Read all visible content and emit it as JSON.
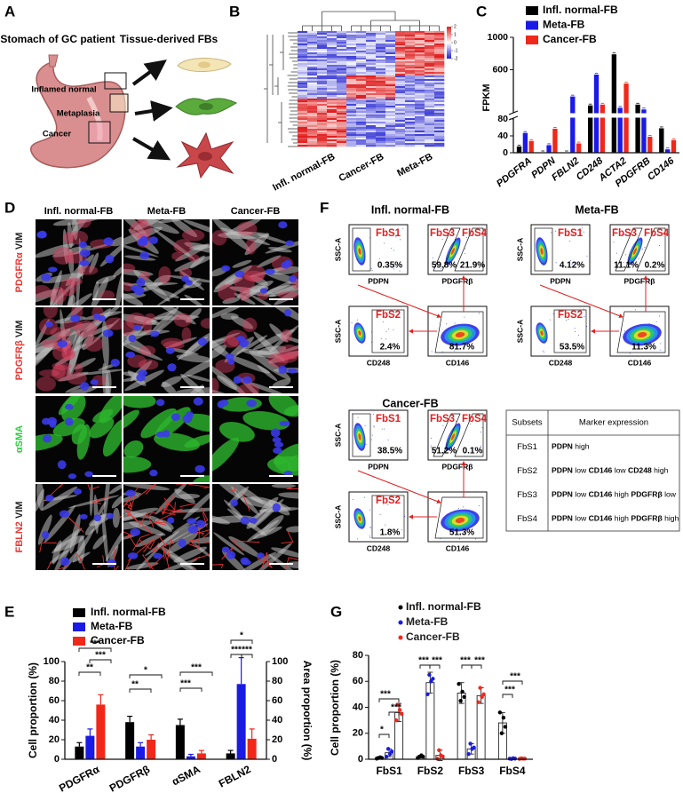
{
  "panel_labels": [
    "A",
    "B",
    "C",
    "D",
    "E",
    "F",
    "G"
  ],
  "panel_a": {
    "title": "Stomach of GC patient",
    "subtitle": "Tissue-derived FBs",
    "regions": [
      "Inflamed normal",
      "Metaplasia",
      "Cancer"
    ]
  },
  "panel_b": {
    "columns": [
      "Infl. normal-FB",
      "Cancer-FB",
      "Meta-FB"
    ],
    "colorbar_ticks": [
      2,
      1,
      0,
      -1,
      -2
    ]
  },
  "panel_d": {
    "columns": [
      "Infl. normal-FB",
      "Meta-FB",
      "Cancer-FB"
    ],
    "rows": [
      {
        "labels": [
          "PDGFRα",
          " VIM"
        ],
        "colors": [
          "#e53935",
          "#222222"
        ]
      },
      {
        "labels": [
          "PDGFRβ",
          " VIM"
        ],
        "colors": [
          "#e53935",
          "#222222"
        ]
      },
      {
        "labels": [
          "αSMA"
        ],
        "colors": [
          "#2ecc40"
        ]
      },
      {
        "labels": [
          "FBLN2",
          " VIM"
        ],
        "colors": [
          "#e53935",
          "#222222"
        ]
      }
    ]
  },
  "panel_f": {
    "groups": [
      {
        "title": "Infl. normal-FB",
        "plots": [
          {
            "x_label": "PDPN",
            "y_label": "SSC-A",
            "gates": [
              "FbS1"
            ],
            "percents": [
              "0.35%"
            ]
          },
          {
            "x_label": "PDGFRβ",
            "gates": [
              "FbS3",
              "FbS4"
            ],
            "percents": [
              "59.8%",
              "21.9%"
            ]
          },
          {
            "x_label": "CD248",
            "y_label": "SSC-A",
            "gates": [
              "FbS2"
            ],
            "percents": [
              "2.4%"
            ]
          },
          {
            "x_label": "CD146",
            "gates": [],
            "percents": [
              "81.7%"
            ]
          }
        ]
      },
      {
        "title": "Meta-FB",
        "plots": [
          {
            "x_label": "PDPN",
            "y_label": "SSC-A",
            "gates": [
              "FbS1"
            ],
            "percents": [
              "4.12%"
            ]
          },
          {
            "x_label": "PDGFRβ",
            "gates": [
              "FbS3",
              "FbS4"
            ],
            "percents": [
              "11.1%",
              "0.2%"
            ]
          },
          {
            "x_label": "CD248",
            "y_label": "SSC-A",
            "gates": [
              "FbS2"
            ],
            "percents": [
              "53.5%"
            ]
          },
          {
            "x_label": "CD146",
            "gates": [],
            "percents": [
              "11.3%"
            ]
          }
        ]
      },
      {
        "title": "Cancer-FB",
        "plots": [
          {
            "x_label": "PDPN",
            "y_label": "SSC-A",
            "gates": [
              "FbS1"
            ],
            "percents": [
              "38.5%"
            ]
          },
          {
            "x_label": "PDGFRβ",
            "gates": [
              "FbS3",
              "FbS4"
            ],
            "percents": [
              "51.2%",
              "0.1%"
            ]
          },
          {
            "x_label": "CD248",
            "y_label": "SSC-A",
            "gates": [
              "FbS2"
            ],
            "percents": [
              "1.8%"
            ]
          },
          {
            "x_label": "CD146",
            "gates": [],
            "percents": [
              "51.3%"
            ]
          }
        ]
      }
    ],
    "table": {
      "headers": [
        "Subsets",
        "Marker expression"
      ],
      "rows": [
        [
          "FbS1",
          [
            "PDPN",
            " high"
          ]
        ],
        [
          "FbS2",
          [
            "PDPN",
            " low ",
            "CD146",
            " low ",
            "CD248",
            " high"
          ]
        ],
        [
          "FbS3",
          [
            "PDPN",
            " low ",
            "CD146",
            " high ",
            "PDGFRβ",
            " low"
          ]
        ],
        [
          "FbS4",
          [
            "PDPN",
            " low ",
            "CD146",
            " high ",
            "PDGFRβ",
            " high"
          ]
        ]
      ]
    }
  },
  "chart_data": [
    {
      "type": "bar",
      "y_label": "FPKM",
      "categories": [
        "PDGFRA",
        "PDPN",
        "FBLN2",
        "CD248",
        "ACTA2",
        "PDGFRB",
        "CD146"
      ],
      "series": [
        {
          "name": "Infl. normal-FB",
          "color": "#000000",
          "values": [
            15,
            1,
            1,
            160,
            790,
            170,
            58
          ]
        },
        {
          "name": "Meta-FB",
          "color": "#1a1ae6",
          "values": [
            47,
            18,
            270,
            540,
            130,
            110,
            8
          ]
        },
        {
          "name": "Cancer-FB",
          "color": "#f0281a",
          "values": [
            28,
            57,
            22,
            170,
            430,
            38,
            30
          ]
        }
      ],
      "ylim": [
        0,
        80
      ],
      "yticks": [
        0,
        40,
        80
      ],
      "upper_ylim": [
        80,
        1000
      ],
      "upper_yticks": [
        600,
        1000
      ],
      "axis_break": true
    },
    {
      "type": "bar",
      "y_label": "Cell proportion (%)",
      "y2_label": "Area proportion (%)",
      "categories": [
        "PDGFRα",
        "PDGFRβ",
        "αSMA",
        "FBLN2"
      ],
      "series": [
        {
          "name": "Infl. normal-FB",
          "color": "#000000",
          "values": [
            13,
            38,
            35,
            6
          ],
          "errors": [
            4,
            6,
            6,
            3
          ]
        },
        {
          "name": "Meta-FB",
          "color": "#1a1ae6",
          "values": [
            24,
            13,
            3,
            77
          ],
          "errors": [
            7,
            4,
            2,
            27
          ]
        },
        {
          "name": "Cancer-FB",
          "color": "#f0281a",
          "values": [
            56,
            20,
            6,
            21
          ],
          "errors": [
            10,
            5,
            3,
            10
          ]
        }
      ],
      "ylim": [
        0,
        100
      ],
      "yticks": [
        0,
        20,
        40,
        60,
        80,
        100
      ],
      "y2lim": [
        0,
        100
      ],
      "y2ticks": [
        0,
        20,
        40,
        60,
        80,
        100
      ],
      "significance": [
        "**",
        "***",
        "***",
        "**",
        "*",
        "***",
        "***",
        "*",
        "***",
        "***"
      ]
    },
    {
      "type": "dotbar",
      "y_label": "Cell proportion (%)",
      "categories": [
        "FbS1",
        "FbS2",
        "FbS3",
        "FbS4"
      ],
      "series": [
        {
          "name": "Infl. normal-FB",
          "color": "#000000",
          "values": [
            1,
            2,
            51,
            28
          ],
          "errors": [
            1,
            1,
            8,
            8
          ],
          "points": [
            [
              0.5,
              1,
              1.5,
              1
            ],
            [
              1,
              2,
              3,
              2
            ],
            [
              58,
              45,
              52,
              48
            ],
            [
              36,
              20,
              32,
              25
            ]
          ]
        },
        {
          "name": "Meta-FB",
          "color": "#1a1ae6",
          "values": [
            5,
            59,
            8,
            0.5
          ],
          "errors": [
            3,
            8,
            4,
            0.5
          ],
          "points": [
            [
              2,
              8,
              4,
              6
            ],
            [
              50,
              65,
              60,
              62
            ],
            [
              4,
              12,
              8,
              9
            ],
            [
              0.5,
              0.2,
              0.8,
              0.5
            ]
          ]
        },
        {
          "name": "Cancer-FB",
          "color": "#f0281a",
          "values": [
            36,
            3,
            49,
            0.5
          ],
          "errors": [
            7,
            4,
            6,
            0.5
          ],
          "points": [
            [
              30,
              42,
              38,
              35
            ],
            [
              0.5,
              7,
              3,
              2
            ],
            [
              44,
              55,
              48,
              50
            ],
            [
              0.3,
              0.7,
              0.5,
              0.5
            ]
          ]
        }
      ],
      "ylim": [
        0,
        80
      ],
      "yticks": [
        0,
        20,
        40,
        60,
        80
      ],
      "significance": [
        "*",
        "***",
        "***",
        "***",
        "***",
        "***",
        "***",
        "***",
        "***"
      ]
    }
  ]
}
